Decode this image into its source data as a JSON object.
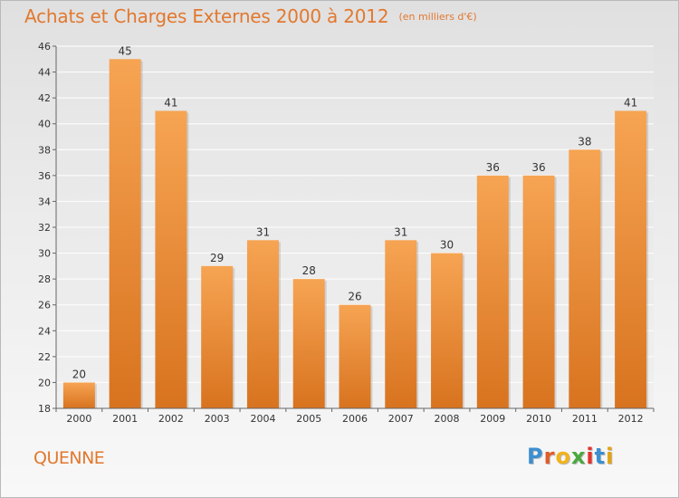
{
  "header": {
    "title": "Achats et Charges Externes 2000 à 2012",
    "subtitle": "(en milliers d'€)"
  },
  "footer": {
    "town": "QUENNE",
    "logo_text": "Proxiti"
  },
  "colors": {
    "accent": "#e2782e",
    "bar_light": "#f6a453",
    "bar_dark": "#d8731f",
    "logo_letters": [
      "#3c8fd0",
      "#e25b2a",
      "#f1b31c",
      "#4aa83e",
      "#e2332c",
      "#3c8fd0",
      "#e4a20f"
    ]
  },
  "chart_data": {
    "type": "bar",
    "title": "Achats et Charges Externes 2000 à 2012",
    "subtitle": "(en milliers d'€)",
    "categories": [
      "2000",
      "2001",
      "2002",
      "2003",
      "2004",
      "2005",
      "2006",
      "2007",
      "2008",
      "2009",
      "2010",
      "2011",
      "2012"
    ],
    "values": [
      20,
      45,
      41,
      29,
      31,
      28,
      26,
      31,
      30,
      36,
      36,
      38,
      41
    ],
    "ylim": [
      18,
      46
    ],
    "yticks": [
      18,
      20,
      22,
      24,
      26,
      28,
      30,
      32,
      34,
      36,
      38,
      40,
      42,
      44,
      46
    ],
    "data_labels": true,
    "grid": "horizontal",
    "legend": "none"
  }
}
